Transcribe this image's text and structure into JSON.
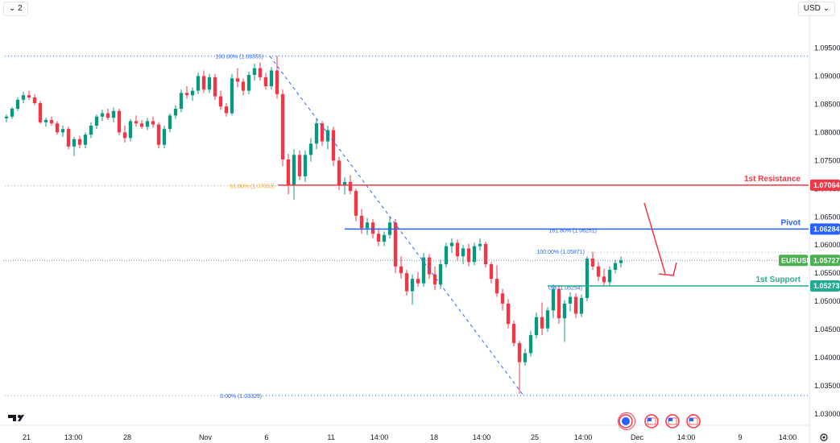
{
  "toolbar": {
    "series_label": "⌄ 2",
    "currency_label": "USD ⌄"
  },
  "chart_data": {
    "type": "candlestick",
    "symbol": "EURUSD",
    "last_price": "1.05727",
    "ylim": [
      1.03,
      1.0975
    ],
    "price_ticks": [
      "1.09500",
      "1.09000",
      "1.08500",
      "1.08000",
      "1.07500",
      "1.07000",
      "1.06500",
      "1.06000",
      "1.05500",
      "1.05000",
      "1.04500",
      "1.04000",
      "1.03500",
      "1.03000"
    ],
    "time_ticks": [
      "21",
      "13:00",
      "28",
      "Nov",
      "6",
      "11",
      "14:00",
      "18",
      "14:00",
      "25",
      "14:00",
      "Dec",
      "14:00",
      "9",
      "14:00"
    ],
    "candles": [
      [
        1.0825,
        1.0832,
        1.0818,
        1.0828
      ],
      [
        1.0828,
        1.0845,
        1.0824,
        1.0842
      ],
      [
        1.0842,
        1.0862,
        1.0838,
        1.0858
      ],
      [
        1.0858,
        1.0872,
        1.0852,
        1.0866
      ],
      [
        1.0866,
        1.0874,
        1.0858,
        1.0862
      ],
      [
        1.0862,
        1.0868,
        1.0848,
        1.0852
      ],
      [
        1.0852,
        1.0856,
        1.0815,
        1.0818
      ],
      [
        1.0818,
        1.0826,
        1.081,
        1.0822
      ],
      [
        1.0822,
        1.0828,
        1.0812,
        1.0816
      ],
      [
        1.0816,
        1.082,
        1.0796,
        1.08
      ],
      [
        1.08,
        1.0812,
        1.0792,
        1.0806
      ],
      [
        1.0806,
        1.081,
        1.077,
        1.0775
      ],
      [
        1.0775,
        1.0792,
        1.0758,
        1.0788
      ],
      [
        1.0788,
        1.0794,
        1.0772,
        1.0778
      ],
      [
        1.0778,
        1.08,
        1.0772,
        1.0796
      ],
      [
        1.0796,
        1.0818,
        1.079,
        1.0812
      ],
      [
        1.0812,
        1.0832,
        1.0806,
        1.0828
      ],
      [
        1.0828,
        1.084,
        1.082,
        1.0834
      ],
      [
        1.0834,
        1.0842,
        1.0822,
        1.0826
      ],
      [
        1.0826,
        1.0844,
        1.0818,
        1.0838
      ],
      [
        1.0838,
        1.0842,
        1.0795,
        1.08
      ],
      [
        1.08,
        1.0812,
        1.0782,
        1.079
      ],
      [
        1.079,
        1.0824,
        1.0784,
        1.082
      ],
      [
        1.082,
        1.083,
        1.081,
        1.0816
      ],
      [
        1.0816,
        1.0822,
        1.0806,
        1.081
      ],
      [
        1.081,
        1.0826,
        1.0804,
        1.082
      ],
      [
        1.082,
        1.0828,
        1.0808,
        1.0814
      ],
      [
        1.0814,
        1.0818,
        1.0772,
        1.0778
      ],
      [
        1.0778,
        1.0812,
        1.0772,
        1.0806
      ],
      [
        1.0806,
        1.0834,
        1.08,
        1.083
      ],
      [
        1.083,
        1.0848,
        1.0824,
        1.0842
      ],
      [
        1.0842,
        1.0876,
        1.0836,
        1.087
      ],
      [
        1.087,
        1.0882,
        1.086,
        1.0866
      ],
      [
        1.0866,
        1.088,
        1.0856,
        1.0874
      ],
      [
        1.0874,
        1.0906,
        1.0868,
        1.09
      ],
      [
        1.09,
        1.091,
        1.087,
        1.0876
      ],
      [
        1.0876,
        1.0904,
        1.087,
        1.0898
      ],
      [
        1.0898,
        1.0904,
        1.0858,
        1.0864
      ],
      [
        1.0864,
        1.0874,
        1.084,
        1.0846
      ],
      [
        1.0846,
        1.0852,
        1.0828,
        1.0834
      ],
      [
        1.0834,
        1.0904,
        1.083,
        1.0896
      ],
      [
        1.0896,
        1.0914,
        1.088,
        1.089
      ],
      [
        1.089,
        1.0896,
        1.0866,
        1.0874
      ],
      [
        1.0874,
        1.0908,
        1.0868,
        1.0902
      ],
      [
        1.0902,
        1.0922,
        1.0892,
        1.0914
      ],
      [
        1.0914,
        1.0924,
        1.0892,
        1.0898
      ],
      [
        1.0898,
        1.0906,
        1.0876,
        1.0882
      ],
      [
        1.0882,
        1.0916,
        1.0876,
        1.091
      ],
      [
        1.091,
        1.0936,
        1.086,
        1.0868
      ],
      [
        1.0868,
        1.0876,
        1.074,
        1.0752
      ],
      [
        1.0752,
        1.0762,
        1.069,
        1.0706
      ],
      [
        1.0706,
        1.077,
        1.068,
        1.076
      ],
      [
        1.076,
        1.0768,
        1.0715,
        1.0722
      ],
      [
        1.0722,
        1.0768,
        1.0712,
        1.076
      ],
      [
        1.076,
        1.079,
        1.0748,
        1.078
      ],
      [
        1.078,
        1.0824,
        1.077,
        1.0816
      ],
      [
        1.0816,
        1.082,
        1.0776,
        1.0784
      ],
      [
        1.0784,
        1.0812,
        1.077,
        1.0804
      ],
      [
        1.0804,
        1.081,
        1.074,
        1.075
      ],
      [
        1.075,
        1.0756,
        1.0698,
        1.0706
      ],
      [
        1.0706,
        1.072,
        1.069,
        1.0712
      ],
      [
        1.0712,
        1.0724,
        1.069,
        1.0696
      ],
      [
        1.0696,
        1.07,
        1.0642,
        1.0652
      ],
      [
        1.0652,
        1.0664,
        1.062,
        1.063
      ],
      [
        1.063,
        1.0648,
        1.0618,
        1.064
      ],
      [
        1.064,
        1.0646,
        1.0612,
        1.062
      ],
      [
        1.062,
        1.063,
        1.0598,
        1.0606
      ],
      [
        1.0606,
        1.0624,
        1.0598,
        1.0618
      ],
      [
        1.0618,
        1.065,
        1.0612,
        1.064
      ],
      [
        1.064,
        1.0646,
        1.055,
        1.0562
      ],
      [
        1.0562,
        1.058,
        1.054,
        1.055
      ],
      [
        1.055,
        1.0556,
        1.051,
        1.0518
      ],
      [
        1.0518,
        1.0548,
        1.0494,
        1.054
      ],
      [
        1.054,
        1.0552,
        1.0526,
        1.0532
      ],
      [
        1.0532,
        1.0586,
        1.0526,
        1.0578
      ],
      [
        1.0578,
        1.0584,
        1.054,
        1.0548
      ],
      [
        1.0548,
        1.0562,
        1.052,
        1.053
      ],
      [
        1.053,
        1.0574,
        1.0522,
        1.0566
      ],
      [
        1.0566,
        1.0604,
        1.056,
        1.0598
      ],
      [
        1.0598,
        1.0612,
        1.0586,
        1.0604
      ],
      [
        1.0604,
        1.061,
        1.0572,
        1.058
      ],
      [
        1.058,
        1.06,
        1.0566,
        1.0594
      ],
      [
        1.0594,
        1.0602,
        1.0562,
        1.057
      ],
      [
        1.057,
        1.0604,
        1.0564,
        1.0598
      ],
      [
        1.0598,
        1.0612,
        1.059,
        1.0602
      ],
      [
        1.0602,
        1.0606,
        1.056,
        1.0566
      ],
      [
        1.0566,
        1.057,
        1.0532,
        1.054
      ],
      [
        1.054,
        1.0564,
        1.0508,
        1.0514
      ],
      [
        1.0514,
        1.0522,
        1.0484,
        1.0496
      ],
      [
        1.0496,
        1.0504,
        1.0452,
        1.046
      ],
      [
        1.046,
        1.0466,
        1.042,
        1.0426
      ],
      [
        1.0426,
        1.043,
        1.0336,
        1.0392
      ],
      [
        1.0392,
        1.0416,
        1.0386,
        1.0408
      ],
      [
        1.0408,
        1.0448,
        1.0402,
        1.044
      ],
      [
        1.044,
        1.048,
        1.0434,
        1.0472
      ],
      [
        1.0472,
        1.0498,
        1.044,
        1.0452
      ],
      [
        1.0452,
        1.049,
        1.0446,
        1.0484
      ],
      [
        1.0484,
        1.053,
        1.047,
        1.0522
      ],
      [
        1.0522,
        1.0528,
        1.046,
        1.047
      ],
      [
        1.047,
        1.0502,
        1.0428,
        1.0496
      ],
      [
        1.0496,
        1.0516,
        1.0482,
        1.0508
      ],
      [
        1.0508,
        1.0514,
        1.047,
        1.0478
      ],
      [
        1.0478,
        1.0512,
        1.0472,
        1.0506
      ],
      [
        1.0506,
        1.058,
        1.05,
        1.0576
      ],
      [
        1.0576,
        1.0588,
        1.0556,
        1.0562
      ],
      [
        1.0562,
        1.057,
        1.0536,
        1.0544
      ],
      [
        1.0544,
        1.0558,
        1.0528,
        1.0534
      ],
      [
        1.0534,
        1.0562,
        1.0528,
        1.0556
      ],
      [
        1.0556,
        1.0574,
        1.055,
        1.0568
      ],
      [
        1.0568,
        1.058,
        1.056,
        1.0573
      ]
    ],
    "fib_top_label": "100.00% (1.09355)",
    "fib_mid_label": "61.80% (1.07053)",
    "fib_bottom_label": "0.00% (1.03329)",
    "fib2_top_label": "100.00% (1.05871)",
    "fib2_ext_label": "161.80% (1.06251)",
    "fib2_low_label": "0% (1.05254)",
    "levels": [
      {
        "name": "1st Resistance",
        "value": 1.07064,
        "value_label": "1.07064",
        "color": "#f23645"
      },
      {
        "name": "Pivot",
        "value": 1.06284,
        "value_label": "1.06284",
        "color": "#2962ff"
      },
      {
        "name": "1st Support",
        "value": 1.05273,
        "value_label": "1.05273",
        "color": "#22ab94"
      }
    ],
    "fib_levels": {
      "top": 1.09355,
      "mid": 1.07053,
      "bottom": 1.03329,
      "top2": 1.05871,
      "ext2": 1.06251,
      "low2": 1.05254
    },
    "colors": {
      "up": "#089981",
      "down": "#f23645",
      "fib_primary": "#2962ff",
      "fib_mid": "#f7a21b",
      "price_line": "#758696",
      "tag_price": "#4caf50"
    }
  }
}
